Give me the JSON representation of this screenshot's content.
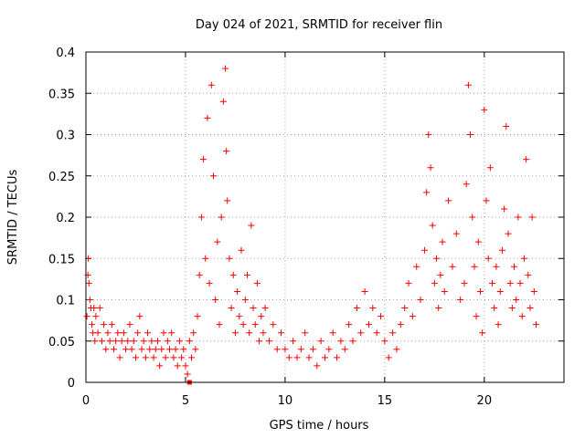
{
  "chart_data": {
    "type": "scatter",
    "title": "Day 024 of 2021, SRMTID for receiver flin",
    "xlabel": "GPS time / hours",
    "ylabel": "SRMTID / TECUs",
    "xlim": [
      0,
      24
    ],
    "ylim": [
      0,
      0.4
    ],
    "xticks": [
      0,
      5,
      10,
      15,
      20
    ],
    "yticks": [
      0,
      0.05,
      0.1,
      0.15,
      0.2,
      0.25,
      0.3,
      0.35,
      0.4
    ],
    "xtick_labels": [
      "0",
      "5",
      "10",
      "15",
      "20"
    ],
    "ytick_labels": [
      "0",
      "0.05",
      "0.1",
      "0.15",
      "0.2",
      "0.25",
      "0.3",
      "0.35",
      "0.4"
    ],
    "grid": true,
    "marker": "+",
    "color": "#ff0000",
    "series": [
      {
        "name": "SRMTID",
        "points": [
          [
            0.05,
            0.08
          ],
          [
            0.1,
            0.13
          ],
          [
            0.12,
            0.15
          ],
          [
            0.15,
            0.12
          ],
          [
            0.2,
            0.1
          ],
          [
            0.25,
            0.09
          ],
          [
            0.3,
            0.07
          ],
          [
            0.35,
            0.06
          ],
          [
            0.4,
            0.09
          ],
          [
            0.45,
            0.05
          ],
          [
            0.5,
            0.08
          ],
          [
            0.6,
            0.06
          ],
          [
            0.7,
            0.09
          ],
          [
            0.8,
            0.05
          ],
          [
            0.9,
            0.07
          ],
          [
            1.0,
            0.04
          ],
          [
            1.1,
            0.06
          ],
          [
            1.2,
            0.05
          ],
          [
            1.3,
            0.07
          ],
          [
            1.4,
            0.04
          ],
          [
            1.5,
            0.05
          ],
          [
            1.6,
            0.06
          ],
          [
            1.7,
            0.03
          ],
          [
            1.8,
            0.05
          ],
          [
            1.9,
            0.06
          ],
          [
            2.0,
            0.04
          ],
          [
            2.1,
            0.05
          ],
          [
            2.2,
            0.07
          ],
          [
            2.3,
            0.04
          ],
          [
            2.4,
            0.05
          ],
          [
            2.5,
            0.03
          ],
          [
            2.6,
            0.06
          ],
          [
            2.7,
            0.08
          ],
          [
            2.8,
            0.04
          ],
          [
            2.9,
            0.05
          ],
          [
            3.0,
            0.03
          ],
          [
            3.1,
            0.06
          ],
          [
            3.2,
            0.04
          ],
          [
            3.3,
            0.05
          ],
          [
            3.4,
            0.03
          ],
          [
            3.5,
            0.04
          ],
          [
            3.6,
            0.05
          ],
          [
            3.7,
            0.02
          ],
          [
            3.8,
            0.04
          ],
          [
            3.9,
            0.06
          ],
          [
            4.0,
            0.03
          ],
          [
            4.1,
            0.05
          ],
          [
            4.2,
            0.04
          ],
          [
            4.3,
            0.06
          ],
          [
            4.4,
            0.03
          ],
          [
            4.5,
            0.04
          ],
          [
            4.6,
            0.02
          ],
          [
            4.7,
            0.05
          ],
          [
            4.8,
            0.03
          ],
          [
            4.9,
            0.04
          ],
          [
            5.0,
            0.02
          ],
          [
            5.1,
            0.01
          ],
          [
            5.2,
            0.05
          ],
          [
            5.3,
            0.03
          ],
          [
            5.4,
            0.06
          ],
          [
            5.5,
            0.04
          ],
          [
            5.6,
            0.08
          ],
          [
            5.7,
            0.13
          ],
          [
            5.8,
            0.2
          ],
          [
            5.9,
            0.27
          ],
          [
            6.0,
            0.15
          ],
          [
            6.1,
            0.32
          ],
          [
            6.2,
            0.12
          ],
          [
            6.3,
            0.36
          ],
          [
            6.4,
            0.25
          ],
          [
            6.5,
            0.1
          ],
          [
            6.6,
            0.17
          ],
          [
            6.7,
            0.07
          ],
          [
            6.8,
            0.2
          ],
          [
            6.9,
            0.34
          ],
          [
            7.0,
            0.38
          ],
          [
            7.05,
            0.28
          ],
          [
            7.1,
            0.22
          ],
          [
            7.2,
            0.15
          ],
          [
            7.3,
            0.09
          ],
          [
            7.4,
            0.13
          ],
          [
            7.5,
            0.06
          ],
          [
            7.6,
            0.11
          ],
          [
            7.7,
            0.08
          ],
          [
            7.8,
            0.16
          ],
          [
            7.9,
            0.07
          ],
          [
            8.0,
            0.1
          ],
          [
            8.1,
            0.13
          ],
          [
            8.2,
            0.06
          ],
          [
            8.3,
            0.19
          ],
          [
            8.4,
            0.09
          ],
          [
            8.5,
            0.07
          ],
          [
            8.6,
            0.12
          ],
          [
            8.7,
            0.05
          ],
          [
            8.8,
            0.08
          ],
          [
            8.9,
            0.06
          ],
          [
            9.0,
            0.09
          ],
          [
            9.2,
            0.05
          ],
          [
            9.4,
            0.07
          ],
          [
            9.6,
            0.04
          ],
          [
            9.8,
            0.06
          ],
          [
            10.0,
            0.04
          ],
          [
            10.2,
            0.03
          ],
          [
            10.4,
            0.05
          ],
          [
            10.6,
            0.03
          ],
          [
            10.8,
            0.04
          ],
          [
            11.0,
            0.06
          ],
          [
            11.2,
            0.03
          ],
          [
            11.4,
            0.04
          ],
          [
            11.6,
            0.02
          ],
          [
            11.8,
            0.05
          ],
          [
            12.0,
            0.03
          ],
          [
            12.2,
            0.04
          ],
          [
            12.4,
            0.06
          ],
          [
            12.6,
            0.03
          ],
          [
            12.8,
            0.05
          ],
          [
            13.0,
            0.04
          ],
          [
            13.2,
            0.07
          ],
          [
            13.4,
            0.05
          ],
          [
            13.6,
            0.09
          ],
          [
            13.8,
            0.06
          ],
          [
            14.0,
            0.11
          ],
          [
            14.2,
            0.07
          ],
          [
            14.4,
            0.09
          ],
          [
            14.6,
            0.06
          ],
          [
            14.8,
            0.08
          ],
          [
            15.0,
            0.05
          ],
          [
            15.2,
            0.03
          ],
          [
            15.4,
            0.06
          ],
          [
            15.6,
            0.04
          ],
          [
            15.8,
            0.07
          ],
          [
            16.0,
            0.09
          ],
          [
            16.2,
            0.12
          ],
          [
            16.4,
            0.08
          ],
          [
            16.6,
            0.14
          ],
          [
            16.8,
            0.1
          ],
          [
            17.0,
            0.16
          ],
          [
            17.1,
            0.23
          ],
          [
            17.2,
            0.3
          ],
          [
            17.3,
            0.26
          ],
          [
            17.4,
            0.19
          ],
          [
            17.5,
            0.12
          ],
          [
            17.6,
            0.15
          ],
          [
            17.7,
            0.09
          ],
          [
            17.8,
            0.13
          ],
          [
            17.9,
            0.17
          ],
          [
            18.0,
            0.11
          ],
          [
            18.2,
            0.22
          ],
          [
            18.4,
            0.14
          ],
          [
            18.6,
            0.18
          ],
          [
            18.8,
            0.1
          ],
          [
            19.0,
            0.12
          ],
          [
            19.1,
            0.24
          ],
          [
            19.2,
            0.36
          ],
          [
            19.3,
            0.3
          ],
          [
            19.4,
            0.2
          ],
          [
            19.5,
            0.14
          ],
          [
            19.6,
            0.08
          ],
          [
            19.7,
            0.17
          ],
          [
            19.8,
            0.11
          ],
          [
            19.9,
            0.06
          ],
          [
            20.0,
            0.33
          ],
          [
            20.1,
            0.22
          ],
          [
            20.2,
            0.15
          ],
          [
            20.3,
            0.26
          ],
          [
            20.4,
            0.12
          ],
          [
            20.5,
            0.09
          ],
          [
            20.6,
            0.14
          ],
          [
            20.7,
            0.07
          ],
          [
            20.8,
            0.11
          ],
          [
            20.9,
            0.16
          ],
          [
            21.0,
            0.21
          ],
          [
            21.1,
            0.31
          ],
          [
            21.2,
            0.18
          ],
          [
            21.3,
            0.12
          ],
          [
            21.4,
            0.09
          ],
          [
            21.5,
            0.14
          ],
          [
            21.6,
            0.1
          ],
          [
            21.7,
            0.2
          ],
          [
            21.8,
            0.12
          ],
          [
            21.9,
            0.08
          ],
          [
            22.0,
            0.15
          ],
          [
            22.1,
            0.27
          ],
          [
            22.2,
            0.13
          ],
          [
            22.3,
            0.09
          ],
          [
            22.4,
            0.2
          ],
          [
            22.5,
            0.11
          ],
          [
            22.6,
            0.07
          ]
        ]
      }
    ],
    "extra_marker": {
      "x": 5.2,
      "y": 0.0,
      "shape": "square"
    }
  }
}
